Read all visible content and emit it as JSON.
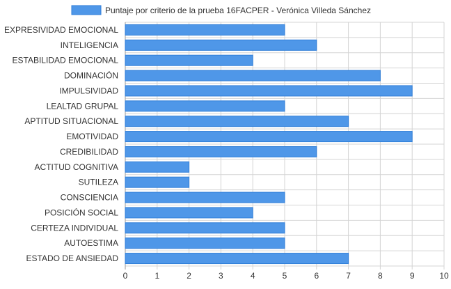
{
  "chart_data": {
    "type": "bar",
    "orientation": "horizontal",
    "legend": {
      "label": "Puntaje por criterio de la prueba 16FACPER - Verónica Villeda Sánchez",
      "placement": "top-center"
    },
    "categories": [
      "EXPRESIVIDAD EMOCIONAL",
      "INTELIGENCIA",
      "ESTABILIDAD EMOCIONAL",
      "DOMINACIÓN",
      "IMPULSIVIDAD",
      "LEALTAD GRUPAL",
      "APTITUD SITUACIONAL",
      "EMOTIVIDAD",
      "CREDIBILIDAD",
      "ACTITUD COGNITIVA",
      "SUTILEZA",
      "CONSCIENCIA",
      "POSICIÓN SOCIAL",
      "CERTEZA INDIVIDUAL",
      "AUTOESTIMA",
      "ESTADO DE ANSIEDAD"
    ],
    "series": [
      {
        "name": "Puntaje por criterio de la prueba 16FACPER - Verónica Villeda Sánchez",
        "values": [
          5,
          6,
          4,
          8,
          9,
          5,
          7,
          9,
          6,
          2,
          2,
          5,
          4,
          5,
          5,
          7
        ]
      }
    ],
    "xlim": [
      0,
      10
    ],
    "xticks": [
      "0",
      "1",
      "2",
      "3",
      "4",
      "5",
      "6",
      "7",
      "8",
      "9",
      "10"
    ],
    "grid": true,
    "colors": {
      "bar_fill": "#4f97e8",
      "bar_stroke": "#2f7ed8",
      "grid": "#d4d4d4",
      "text": "#333333"
    }
  }
}
